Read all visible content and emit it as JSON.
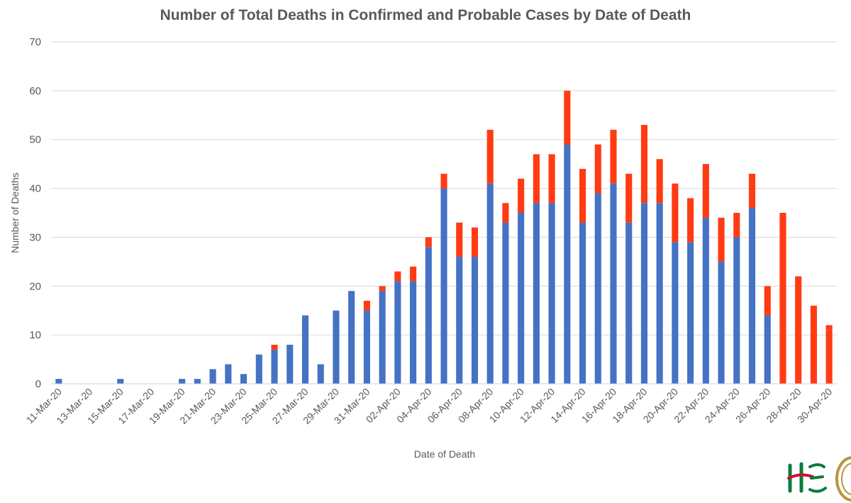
{
  "chart_data": {
    "type": "bar",
    "stacked": true,
    "title": "Number of Total Deaths in Confirmed and Probable Cases by Date of Death",
    "xlabel": "Date of Death",
    "ylabel": "Number of Deaths",
    "ylim": [
      0,
      70
    ],
    "yticks": [
      0,
      10,
      20,
      30,
      40,
      50,
      60,
      70
    ],
    "grid": true,
    "legend": "none",
    "categories": [
      "11-Mar-20",
      "12-Mar-20",
      "13-Mar-20",
      "14-Mar-20",
      "15-Mar-20",
      "16-Mar-20",
      "17-Mar-20",
      "18-Mar-20",
      "19-Mar-20",
      "20-Mar-20",
      "21-Mar-20",
      "22-Mar-20",
      "23-Mar-20",
      "24-Mar-20",
      "25-Mar-20",
      "26-Mar-20",
      "27-Mar-20",
      "28-Mar-20",
      "29-Mar-20",
      "30-Mar-20",
      "31-Mar-20",
      "01-Apr-20",
      "02-Apr-20",
      "03-Apr-20",
      "04-Apr-20",
      "05-Apr-20",
      "06-Apr-20",
      "07-Apr-20",
      "08-Apr-20",
      "09-Apr-20",
      "10-Apr-20",
      "11-Apr-20",
      "12-Apr-20",
      "13-Apr-20",
      "14-Apr-20",
      "15-Apr-20",
      "16-Apr-20",
      "17-Apr-20",
      "18-Apr-20",
      "19-Apr-20",
      "20-Apr-20",
      "21-Apr-20",
      "22-Apr-20",
      "23-Apr-20",
      "24-Apr-20",
      "25-Apr-20",
      "26-Apr-20",
      "27-Apr-20",
      "28-Apr-20",
      "29-Apr-20",
      "30-Apr-20"
    ],
    "tick_labels": [
      "11-Mar-20",
      "13-Mar-20",
      "15-Mar-20",
      "17-Mar-20",
      "19-Mar-20",
      "21-Mar-20",
      "23-Mar-20",
      "25-Mar-20",
      "27-Mar-20",
      "29-Mar-20",
      "31-Mar-20",
      "02-Apr-20",
      "04-Apr-20",
      "06-Apr-20",
      "08-Apr-20",
      "10-Apr-20",
      "12-Apr-20",
      "14-Apr-20",
      "16-Apr-20",
      "18-Apr-20",
      "20-Apr-20",
      "22-Apr-20",
      "24-Apr-20",
      "26-Apr-20",
      "28-Apr-20",
      "30-Apr-20"
    ],
    "series": [
      {
        "color": "#4472C4",
        "values": [
          1,
          0,
          0,
          0,
          1,
          0,
          0,
          0,
          1,
          1,
          3,
          4,
          2,
          6,
          7,
          8,
          14,
          4,
          15,
          19,
          15,
          19,
          21,
          21,
          28,
          40,
          26,
          26,
          41,
          33,
          35,
          37,
          37,
          49,
          33,
          39,
          41,
          33,
          37,
          37,
          29,
          29,
          34,
          25,
          30,
          36,
          14,
          0,
          0,
          0,
          0
        ]
      },
      {
        "color": "#FF3B14",
        "values": [
          0,
          0,
          0,
          0,
          0,
          0,
          0,
          0,
          0,
          0,
          0,
          0,
          0,
          0,
          1,
          0,
          0,
          0,
          0,
          0,
          2,
          1,
          2,
          3,
          2,
          3,
          7,
          6,
          11,
          4,
          7,
          10,
          10,
          11,
          11,
          10,
          11,
          10,
          16,
          9,
          12,
          9,
          11,
          9,
          5,
          7,
          6,
          35,
          22,
          16,
          11
        ]
      },
      {
        "color": "#FF3B14",
        "values": [
          0,
          0,
          0,
          0,
          0,
          0,
          0,
          0,
          0,
          0,
          0,
          0,
          0,
          0,
          0,
          0,
          0,
          0,
          0,
          0,
          0,
          0,
          0,
          0,
          0,
          0,
          0,
          0,
          0,
          0,
          0,
          0,
          0,
          0,
          0,
          0,
          0,
          0,
          0,
          0,
          0,
          0,
          0,
          0,
          0,
          0,
          0,
          0,
          0,
          0,
          1
        ]
      }
    ]
  },
  "logos": {
    "hse_color": "#0E7A3C",
    "hse_accent": "#C8102E",
    "seal_color": "#B8963C"
  }
}
